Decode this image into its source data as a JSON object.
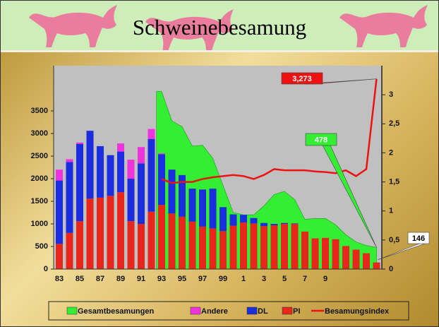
{
  "title": "Schweinebesamung",
  "chart_data": {
    "type": "bar",
    "categories": [
      "83",
      null,
      "85",
      null,
      "87",
      null,
      "89",
      null,
      "91",
      null,
      "93",
      null,
      "95",
      null,
      "97",
      null,
      "99",
      null,
      "1",
      null,
      "3",
      null,
      "5",
      null,
      "7",
      null,
      "9",
      null,
      null,
      null,
      null,
      null
    ],
    "series": [
      {
        "name": "Gesamtbesamungen",
        "type": "area",
        "color": "#33ee33",
        "values": [
          null,
          null,
          null,
          null,
          null,
          null,
          null,
          null,
          null,
          null,
          3930,
          3280,
          3150,
          2720,
          2740,
          2450,
          1850,
          1250,
          1200,
          1200,
          1400,
          1650,
          1720,
          1540,
          1100,
          1120,
          1120,
          980,
          760,
          600,
          520,
          478
        ]
      },
      {
        "name": "Andere",
        "type": "bar",
        "color": "#ee33dd",
        "values": [
          240,
          60,
          30,
          0,
          0,
          0,
          180,
          420,
          360,
          220,
          20,
          0,
          0,
          0,
          0,
          0,
          0,
          0,
          0,
          0,
          0,
          0,
          0,
          0,
          0,
          0,
          0,
          0,
          0,
          0,
          0,
          0
        ]
      },
      {
        "name": "DL",
        "type": "bar",
        "color": "#1a2ee0",
        "values": [
          1400,
          1570,
          1710,
          1500,
          1140,
          900,
          900,
          940,
          1340,
          1610,
          1120,
          970,
          920,
          730,
          820,
          880,
          530,
          250,
          170,
          120,
          70,
          30,
          20,
          10,
          0,
          0,
          0,
          0,
          0,
          0,
          0,
          0
        ]
      },
      {
        "name": "PI",
        "type": "bar",
        "color": "#e8261c",
        "values": [
          560,
          800,
          1060,
          1560,
          1580,
          1620,
          1700,
          1060,
          1000,
          1270,
          1420,
          1230,
          1160,
          1050,
          940,
          900,
          840,
          960,
          1030,
          1010,
          950,
          970,
          1000,
          1000,
          830,
          680,
          690,
          660,
          510,
          430,
          350,
          146
        ]
      },
      {
        "name": "Besamungsindex",
        "type": "line",
        "axis": "y2",
        "color": "#ee1111",
        "values": [
          null,
          null,
          null,
          null,
          null,
          null,
          null,
          null,
          null,
          null,
          1.55,
          1.48,
          1.5,
          1.5,
          1.55,
          1.58,
          1.6,
          1.62,
          1.6,
          1.55,
          1.62,
          1.72,
          1.7,
          1.7,
          1.7,
          1.68,
          1.67,
          1.65,
          1.7,
          1.6,
          1.72,
          3.273
        ],
        "value_labels": [
          null,
          null,
          null,
          null,
          null,
          null,
          null,
          null,
          null,
          null,
          null,
          null,
          null,
          null,
          null,
          null,
          null,
          null,
          null,
          null,
          null,
          null,
          null,
          null,
          null,
          null,
          null,
          null,
          null,
          null,
          null,
          "3,273"
        ]
      }
    ],
    "ylim": [
      0,
      4500
    ],
    "yticks": [
      0,
      500,
      1000,
      1500,
      2000,
      2500,
      3000,
      3500
    ],
    "y2lim": [
      0,
      3.5
    ],
    "y2ticks": [
      0,
      {
        "value": 0.5,
        "label": "0,5"
      },
      1,
      {
        "value": 1.5,
        "label": "1,5"
      },
      2,
      {
        "value": 2.5,
        "label": "2,5"
      },
      3
    ],
    "grid": false,
    "legend": "bottom"
  }
}
